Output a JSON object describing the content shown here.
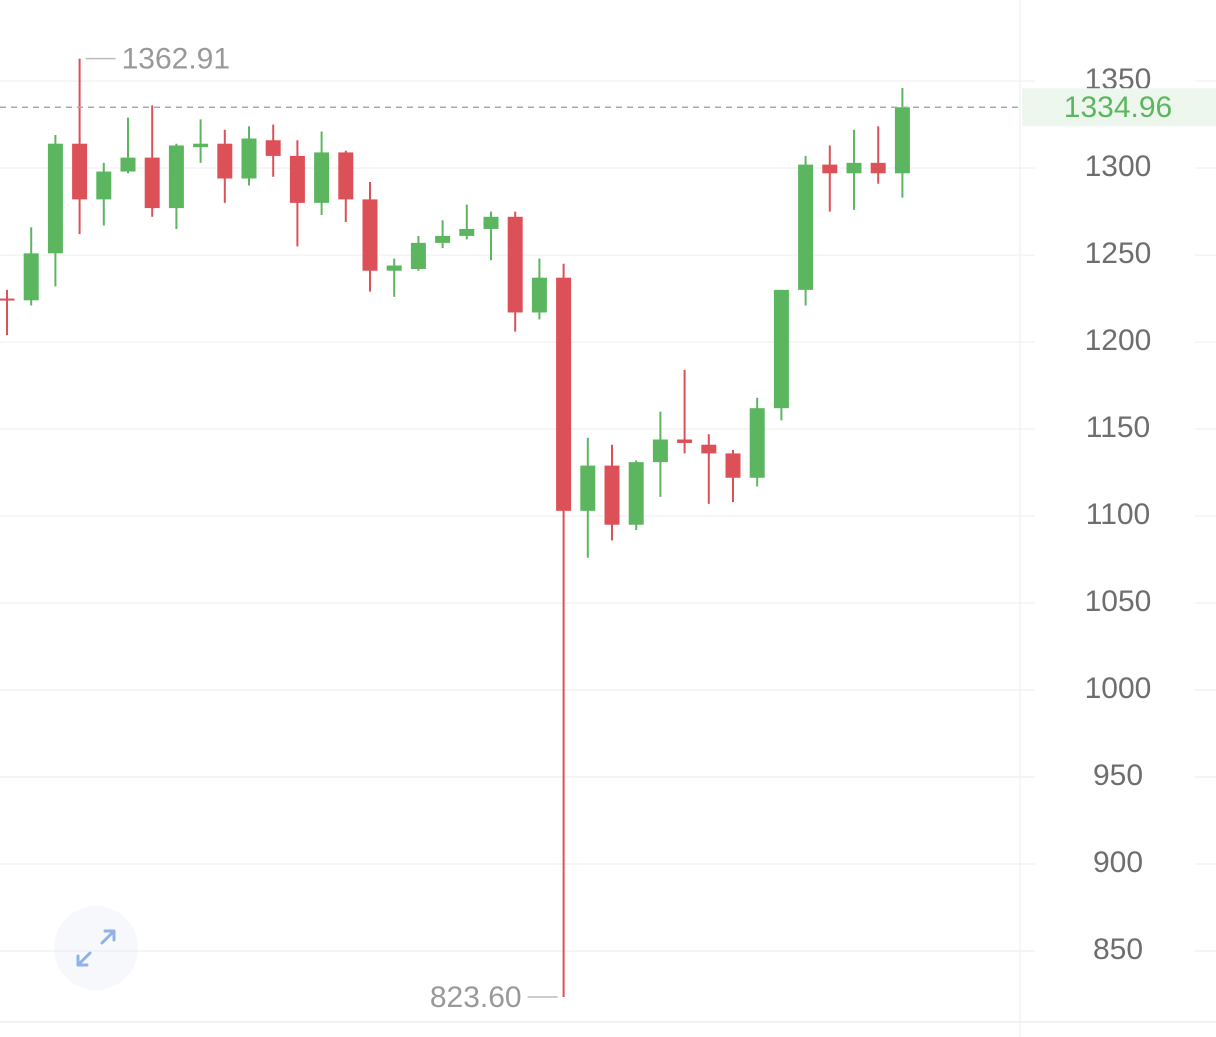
{
  "chart_data": {
    "type": "candlestick",
    "open": [
      1225,
      1224,
      1251,
      1314,
      1282,
      1298,
      1306,
      1277,
      1312,
      1314,
      1294,
      1316,
      1307,
      1280,
      1309,
      1282,
      1241,
      1242,
      1257,
      1261,
      1265,
      1272,
      1217,
      1237,
      1103,
      1129,
      1095,
      1131,
      1144,
      1141,
      1136,
      1122,
      1162,
      1230,
      1302,
      1297,
      1303,
      1297
    ],
    "high": [
      1230,
      1266,
      1319,
      1362.91,
      1303,
      1329,
      1336,
      1314,
      1328,
      1322,
      1324,
      1325,
      1316,
      1321,
      1310,
      1292,
      1248,
      1261,
      1270,
      1279,
      1275,
      1275,
      1248,
      1245,
      1145,
      1141,
      1132,
      1160,
      1184,
      1147,
      1138,
      1168,
      1230,
      1307,
      1313,
      1322,
      1324,
      1346
    ],
    "low": [
      1204,
      1221,
      1232,
      1262,
      1267,
      1297,
      1272,
      1265,
      1303,
      1280,
      1290,
      1295,
      1255,
      1273,
      1269,
      1229,
      1226,
      1241,
      1254,
      1259,
      1247,
      1206,
      1213,
      823.6,
      1076,
      1086,
      1092,
      1111,
      1136,
      1107,
      1108,
      1117,
      1155,
      1221,
      1275,
      1276,
      1291,
      1283
    ],
    "close": [
      1224,
      1251,
      1314,
      1282,
      1298,
      1306,
      1277,
      1313,
      1314,
      1294,
      1317,
      1307,
      1280,
      1309,
      1282,
      1241,
      1244,
      1257,
      1261,
      1265,
      1272,
      1217,
      1237,
      1103,
      1129,
      1095,
      1131,
      1144,
      1142,
      1136,
      1122,
      1162,
      1230,
      1302,
      1297,
      1303,
      1297,
      1334.96
    ],
    "up_color": "#5cb660",
    "down_color": "#dc5158",
    "ylim": [
      809.2,
      1396.6
    ],
    "yticks": [
      850,
      900,
      950,
      1000,
      1050,
      1100,
      1150,
      1200,
      1250,
      1300,
      1350
    ],
    "grid": true,
    "max_label": "1362.91",
    "min_label": "823.60",
    "current_price": {
      "value": 1334.96,
      "label": "1334.96"
    }
  }
}
